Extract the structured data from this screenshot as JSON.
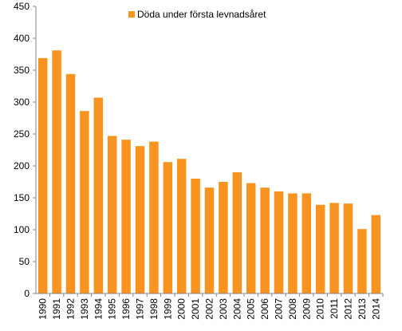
{
  "chart_data": {
    "type": "bar",
    "title": "",
    "xlabel": "",
    "ylabel": "",
    "categories": [
      "1990",
      "1991",
      "1992",
      "1993",
      "1994",
      "1995",
      "1996",
      "1997",
      "1998",
      "1999",
      "2000",
      "2001",
      "2002",
      "2003",
      "2004",
      "2005",
      "2006",
      "2007",
      "2008",
      "2009",
      "2010",
      "2011",
      "2012",
      "2013",
      "2014"
    ],
    "series": [
      {
        "name": "Döda under första levnadsåret",
        "color": "#f7931e",
        "values": [
          369,
          381,
          344,
          286,
          307,
          247,
          241,
          231,
          238,
          206,
          211,
          180,
          166,
          175,
          190,
          173,
          166,
          160,
          157,
          157,
          139,
          142,
          141,
          101,
          123
        ]
      }
    ],
    "ylim": [
      0,
      450
    ],
    "yticks": [
      0,
      50,
      100,
      150,
      200,
      250,
      300,
      350,
      400,
      450
    ],
    "grid": false,
    "legend_position": "top-center"
  }
}
